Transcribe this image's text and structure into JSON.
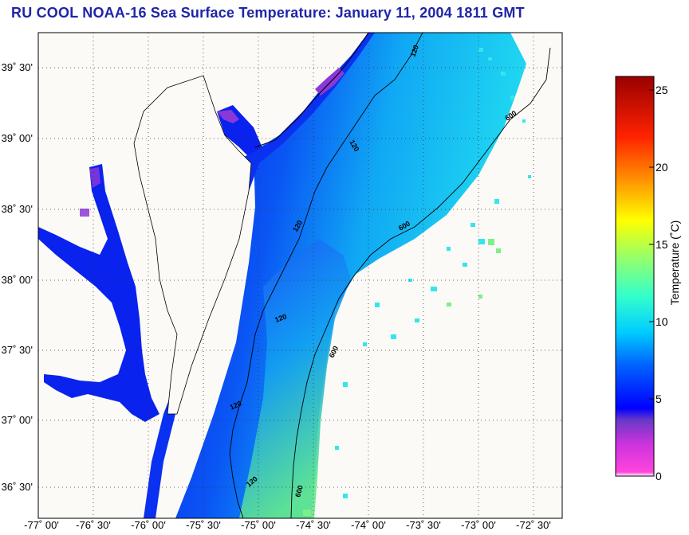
{
  "title": "RU COOL  NOAA-16  Sea Surface Temperature:  January 11, 2004 1811 GMT",
  "map": {
    "lat_labels": [
      "39˚ 30'",
      "39˚ 00'",
      "38˚ 30'",
      "38˚ 00'",
      "37˚ 30'",
      "37˚ 00'",
      "36˚ 30'"
    ],
    "lon_labels": [
      "-77˚ 00'",
      "-76˚ 30'",
      "-76˚ 00'",
      "-75˚ 30'",
      "-75˚ 00'",
      "-74˚ 30'",
      "-74˚ 00'",
      "-73˚ 30'",
      "-73˚ 00'",
      "-72˚ 30'"
    ],
    "contour_labels": [
      "120",
      "120",
      "120",
      "120",
      "120",
      "120",
      "600",
      "600",
      "600",
      "600"
    ],
    "extent": {
      "lon_min": -77.0,
      "lon_max": -72.33,
      "lat_min": 36.25,
      "lat_max": 39.75
    }
  },
  "colorbar": {
    "title": "Temperature (˚C)",
    "ticks": [
      "0",
      "5",
      "10",
      "15",
      "20",
      "25"
    ],
    "range": [
      0,
      26
    ],
    "colors": [
      "#ffffff",
      "#ff33cc",
      "#9933cc",
      "#0000ff",
      "#0099ff",
      "#00ffff",
      "#66ff99",
      "#ffff00",
      "#ff8800",
      "#ff0000",
      "#990000"
    ]
  }
}
